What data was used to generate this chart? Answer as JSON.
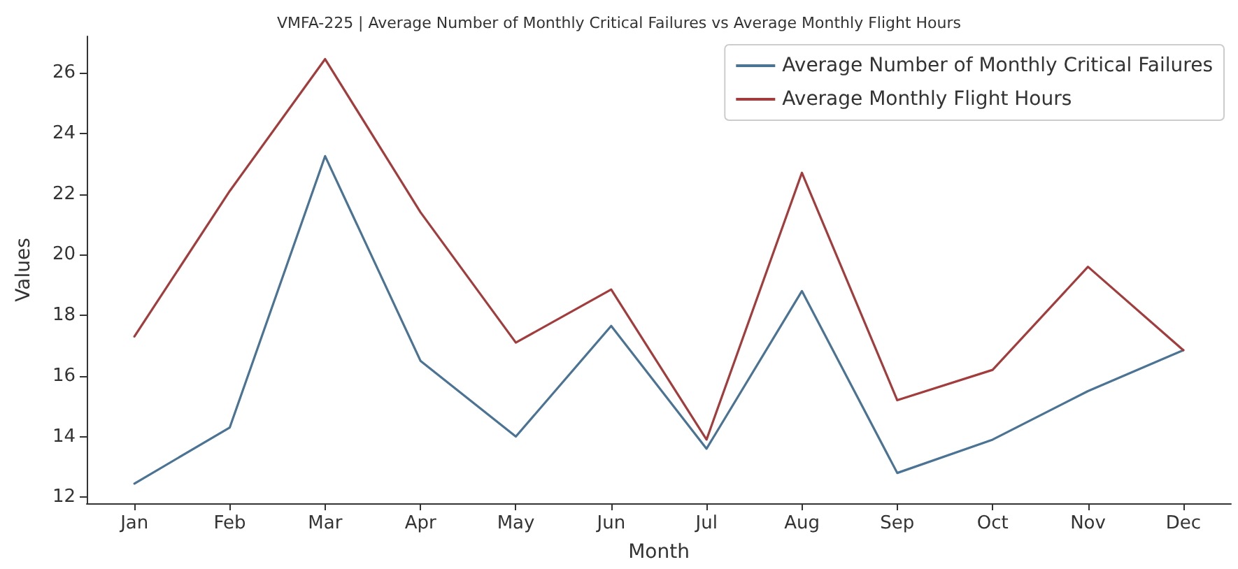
{
  "chart_data": {
    "type": "line",
    "title": "VMFA-225 | Average Number of Monthly Critical Failures vs Average Monthly Flight Hours",
    "xlabel": "Month",
    "ylabel": "Values",
    "categories": [
      "Jan",
      "Feb",
      "Mar",
      "Apr",
      "May",
      "Jun",
      "Jul",
      "Aug",
      "Sep",
      "Oct",
      "Nov",
      "Dec"
    ],
    "series": [
      {
        "name": "Average Number of Monthly Critical Failures",
        "color": "#4a7394",
        "values": [
          12.45,
          14.3,
          23.25,
          16.5,
          14.0,
          17.65,
          13.6,
          18.8,
          12.8,
          13.9,
          15.5,
          16.85
        ]
      },
      {
        "name": "Average Monthly Flight Hours",
        "color": "#a33c3c",
        "values": [
          17.3,
          22.1,
          26.45,
          21.4,
          17.1,
          18.85,
          13.9,
          22.7,
          15.2,
          16.2,
          19.6,
          16.85
        ]
      }
    ],
    "ylim": [
      11.8,
      27.2
    ],
    "yticks": [
      12,
      14,
      16,
      18,
      20,
      22,
      24,
      26
    ],
    "legend": "top right",
    "grid": false,
    "marker": "none",
    "line_style": "solid"
  }
}
